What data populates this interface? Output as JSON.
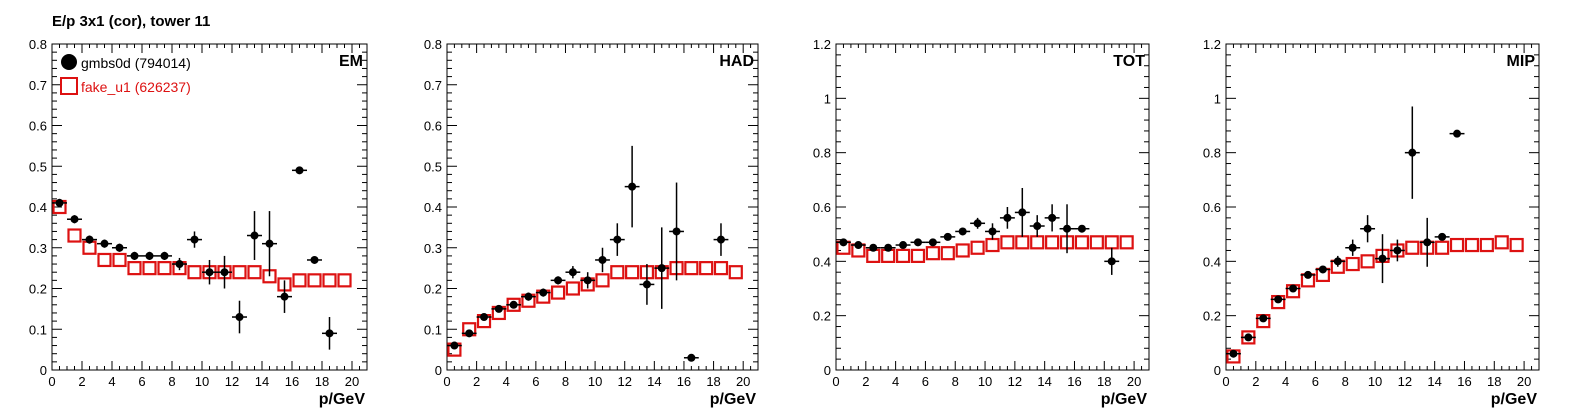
{
  "title": "E/p 3x1 (cor), tower 11",
  "colors": {
    "series_a": "#000000",
    "series_b": "#dd1111"
  },
  "legend": [
    {
      "label": "gmbs0d (794014)",
      "marker": "filled-circle",
      "color": "#000000"
    },
    {
      "label": "fake_u1 (626237)",
      "marker": "open-square",
      "color": "#dd1111"
    }
  ],
  "chart_data": [
    {
      "type": "scatter",
      "title": "EM",
      "xlabel": "p/GeV",
      "xlim": [
        0,
        21
      ],
      "ylim": [
        0,
        0.8
      ],
      "xticks": [
        0,
        2,
        4,
        6,
        8,
        10,
        12,
        14,
        16,
        18,
        20
      ],
      "yticks": [
        0,
        0.1,
        0.2,
        0.3,
        0.4,
        0.5,
        0.6,
        0.7,
        0.8
      ],
      "ytick_labels": [
        "0",
        "0.1",
        "0.2",
        "0.3",
        "0.4",
        "0.5",
        "0.6",
        "0.7",
        "0.8"
      ],
      "series": [
        {
          "name": "gmbs0d (794014)",
          "marker": "filled-circle",
          "color": "#000000",
          "x": [
            0.5,
            1.5,
            2.5,
            3.5,
            4.5,
            5.5,
            6.5,
            7.5,
            8.5,
            9.5,
            10.5,
            11.5,
            12.5,
            13.5,
            14.5,
            15.5,
            16.5,
            17.5,
            18.5
          ],
          "y": [
            0.41,
            0.37,
            0.32,
            0.31,
            0.3,
            0.28,
            0.28,
            0.28,
            0.26,
            0.32,
            0.24,
            0.24,
            0.13,
            0.33,
            0.31,
            0.18,
            0.49,
            0.27,
            0.09
          ],
          "yerr": [
            0.01,
            0.01,
            0.01,
            0.01,
            0.01,
            0.01,
            0.01,
            0.01,
            0.015,
            0.02,
            0.03,
            0.04,
            0.04,
            0.06,
            0.08,
            0.04,
            0.0,
            0.0,
            0.04
          ]
        },
        {
          "name": "fake_u1 (626237)",
          "marker": "open-square",
          "color": "#dd1111",
          "x": [
            0.5,
            1.5,
            2.5,
            3.5,
            4.5,
            5.5,
            6.5,
            7.5,
            8.5,
            9.5,
            10.5,
            11.5,
            12.5,
            13.5,
            14.5,
            15.5,
            16.5,
            17.5,
            18.5,
            19.5
          ],
          "y": [
            0.4,
            0.33,
            0.3,
            0.27,
            0.27,
            0.25,
            0.25,
            0.25,
            0.25,
            0.24,
            0.24,
            0.24,
            0.24,
            0.24,
            0.23,
            0.21,
            0.22,
            0.22,
            0.22,
            0.22
          ],
          "yerr": []
        }
      ]
    },
    {
      "type": "scatter",
      "title": "HAD",
      "xlabel": "p/GeV",
      "xlim": [
        0,
        21
      ],
      "ylim": [
        0,
        0.8
      ],
      "xticks": [
        0,
        2,
        4,
        6,
        8,
        10,
        12,
        14,
        16,
        18,
        20
      ],
      "yticks": [
        0,
        0.1,
        0.2,
        0.3,
        0.4,
        0.5,
        0.6,
        0.7,
        0.8
      ],
      "ytick_labels": [
        "0",
        "0.1",
        "0.2",
        "0.3",
        "0.4",
        "0.5",
        "0.6",
        "0.7",
        "0.8"
      ],
      "series": [
        {
          "name": "gmbs0d (794014)",
          "marker": "filled-circle",
          "color": "#000000",
          "x": [
            0.5,
            1.5,
            2.5,
            3.5,
            4.5,
            5.5,
            6.5,
            7.5,
            8.5,
            9.5,
            10.5,
            11.5,
            12.5,
            13.5,
            14.5,
            15.5,
            16.5,
            18.5
          ],
          "y": [
            0.06,
            0.09,
            0.13,
            0.15,
            0.16,
            0.18,
            0.19,
            0.22,
            0.24,
            0.22,
            0.27,
            0.32,
            0.45,
            0.21,
            0.25,
            0.34,
            0.03,
            0.32
          ],
          "yerr": [
            0.005,
            0.005,
            0.005,
            0.005,
            0.005,
            0.01,
            0.01,
            0.01,
            0.015,
            0.02,
            0.03,
            0.04,
            0.1,
            0.05,
            0.1,
            0.12,
            0.0,
            0.04
          ]
        },
        {
          "name": "fake_u1 (626237)",
          "marker": "open-square",
          "color": "#dd1111",
          "x": [
            0.5,
            1.5,
            2.5,
            3.5,
            4.5,
            5.5,
            6.5,
            7.5,
            8.5,
            9.5,
            10.5,
            11.5,
            12.5,
            13.5,
            14.5,
            15.5,
            16.5,
            17.5,
            18.5,
            19.5
          ],
          "y": [
            0.05,
            0.1,
            0.12,
            0.14,
            0.16,
            0.17,
            0.18,
            0.19,
            0.2,
            0.21,
            0.22,
            0.24,
            0.24,
            0.24,
            0.24,
            0.25,
            0.25,
            0.25,
            0.25,
            0.24
          ],
          "yerr": []
        }
      ]
    },
    {
      "type": "scatter",
      "title": "TOT",
      "xlabel": "p/GeV",
      "xlim": [
        0,
        21
      ],
      "ylim": [
        0,
        1.2
      ],
      "xticks": [
        0,
        2,
        4,
        6,
        8,
        10,
        12,
        14,
        16,
        18,
        20
      ],
      "yticks": [
        0,
        0.2,
        0.4,
        0.6,
        0.8,
        1.0,
        1.2
      ],
      "ytick_labels": [
        "0",
        "0.2",
        "0.4",
        "0.6",
        "0.8",
        "1",
        "1.2"
      ],
      "series": [
        {
          "name": "gmbs0d (794014)",
          "marker": "filled-circle",
          "color": "#000000",
          "x": [
            0.5,
            1.5,
            2.5,
            3.5,
            4.5,
            5.5,
            6.5,
            7.5,
            8.5,
            9.5,
            10.5,
            11.5,
            12.5,
            13.5,
            14.5,
            15.5,
            16.5,
            18.5
          ],
          "y": [
            0.47,
            0.46,
            0.45,
            0.45,
            0.46,
            0.47,
            0.47,
            0.49,
            0.51,
            0.54,
            0.51,
            0.56,
            0.58,
            0.53,
            0.56,
            0.52,
            0.52,
            0.4
          ],
          "yerr": [
            0.005,
            0.005,
            0.005,
            0.005,
            0.005,
            0.01,
            0.01,
            0.01,
            0.01,
            0.02,
            0.03,
            0.04,
            0.09,
            0.04,
            0.05,
            0.09,
            0.0,
            0.05
          ]
        },
        {
          "name": "fake_u1 (626237)",
          "marker": "open-square",
          "color": "#dd1111",
          "x": [
            0.5,
            1.5,
            2.5,
            3.5,
            4.5,
            5.5,
            6.5,
            7.5,
            8.5,
            9.5,
            10.5,
            11.5,
            12.5,
            13.5,
            14.5,
            15.5,
            16.5,
            17.5,
            18.5,
            19.5
          ],
          "y": [
            0.45,
            0.44,
            0.42,
            0.42,
            0.42,
            0.42,
            0.43,
            0.43,
            0.44,
            0.45,
            0.46,
            0.47,
            0.47,
            0.47,
            0.47,
            0.47,
            0.47,
            0.47,
            0.47,
            0.47
          ],
          "yerr": []
        }
      ]
    },
    {
      "type": "scatter",
      "title": "MIP",
      "xlabel": "p/GeV",
      "xlim": [
        0,
        21
      ],
      "ylim": [
        0,
        1.2
      ],
      "xticks": [
        0,
        2,
        4,
        6,
        8,
        10,
        12,
        14,
        16,
        18,
        20
      ],
      "yticks": [
        0,
        0.2,
        0.4,
        0.6,
        0.8,
        1.0,
        1.2
      ],
      "ytick_labels": [
        "0",
        "0.2",
        "0.4",
        "0.6",
        "0.8",
        "1",
        "1.2"
      ],
      "series": [
        {
          "name": "gmbs0d (794014)",
          "marker": "filled-circle",
          "color": "#000000",
          "x": [
            0.5,
            1.5,
            2.5,
            3.5,
            4.5,
            5.5,
            6.5,
            7.5,
            8.5,
            9.5,
            10.5,
            11.5,
            12.5,
            13.5,
            14.5,
            15.5
          ],
          "y": [
            0.06,
            0.12,
            0.19,
            0.26,
            0.3,
            0.35,
            0.37,
            0.4,
            0.45,
            0.52,
            0.41,
            0.44,
            0.8,
            0.47,
            0.49,
            0.87
          ],
          "yerr": [
            0.005,
            0.005,
            0.005,
            0.005,
            0.005,
            0.01,
            0.01,
            0.02,
            0.03,
            0.05,
            0.09,
            0.04,
            0.17,
            0.09,
            0.0,
            0.0
          ]
        },
        {
          "name": "fake_u1 (626237)",
          "marker": "open-square",
          "color": "#dd1111",
          "x": [
            0.5,
            1.5,
            2.5,
            3.5,
            4.5,
            5.5,
            6.5,
            7.5,
            8.5,
            9.5,
            10.5,
            11.5,
            12.5,
            13.5,
            14.5,
            15.5,
            16.5,
            17.5,
            18.5,
            19.5
          ],
          "y": [
            0.05,
            0.12,
            0.18,
            0.25,
            0.29,
            0.33,
            0.35,
            0.38,
            0.39,
            0.4,
            0.42,
            0.44,
            0.45,
            0.45,
            0.45,
            0.46,
            0.46,
            0.46,
            0.47,
            0.46
          ],
          "yerr": []
        }
      ]
    }
  ]
}
